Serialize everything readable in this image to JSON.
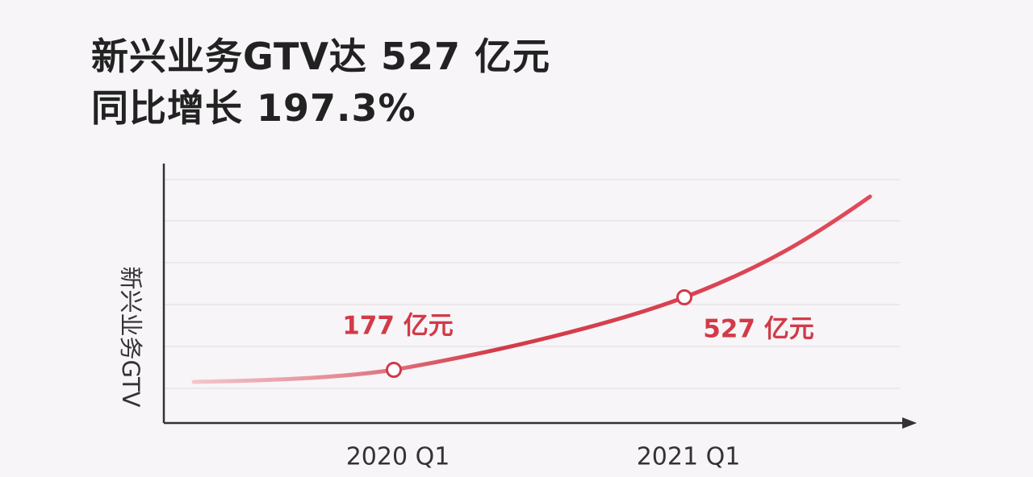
{
  "title": {
    "line1": "新兴业务GTV达 527 亿元",
    "line2": "同比增长 197.3%"
  },
  "colors": {
    "accent": "#d23a48",
    "axis": "#333333",
    "grid": "#e4e0e4",
    "background": "#f7f5f7"
  },
  "chart_data": {
    "type": "line",
    "title": "新兴业务GTV达 527 亿元",
    "subtitle": "同比增长 197.3%",
    "xlabel": "",
    "ylabel": "新兴业务GTV",
    "categories": [
      "2020 Q1",
      "2021 Q1"
    ],
    "series": [
      {
        "values": [
          177,
          527
        ],
        "data_labels": [
          "177 亿元",
          "527 亿元"
        ]
      }
    ],
    "grid": true,
    "y_ticks_shown": false
  }
}
